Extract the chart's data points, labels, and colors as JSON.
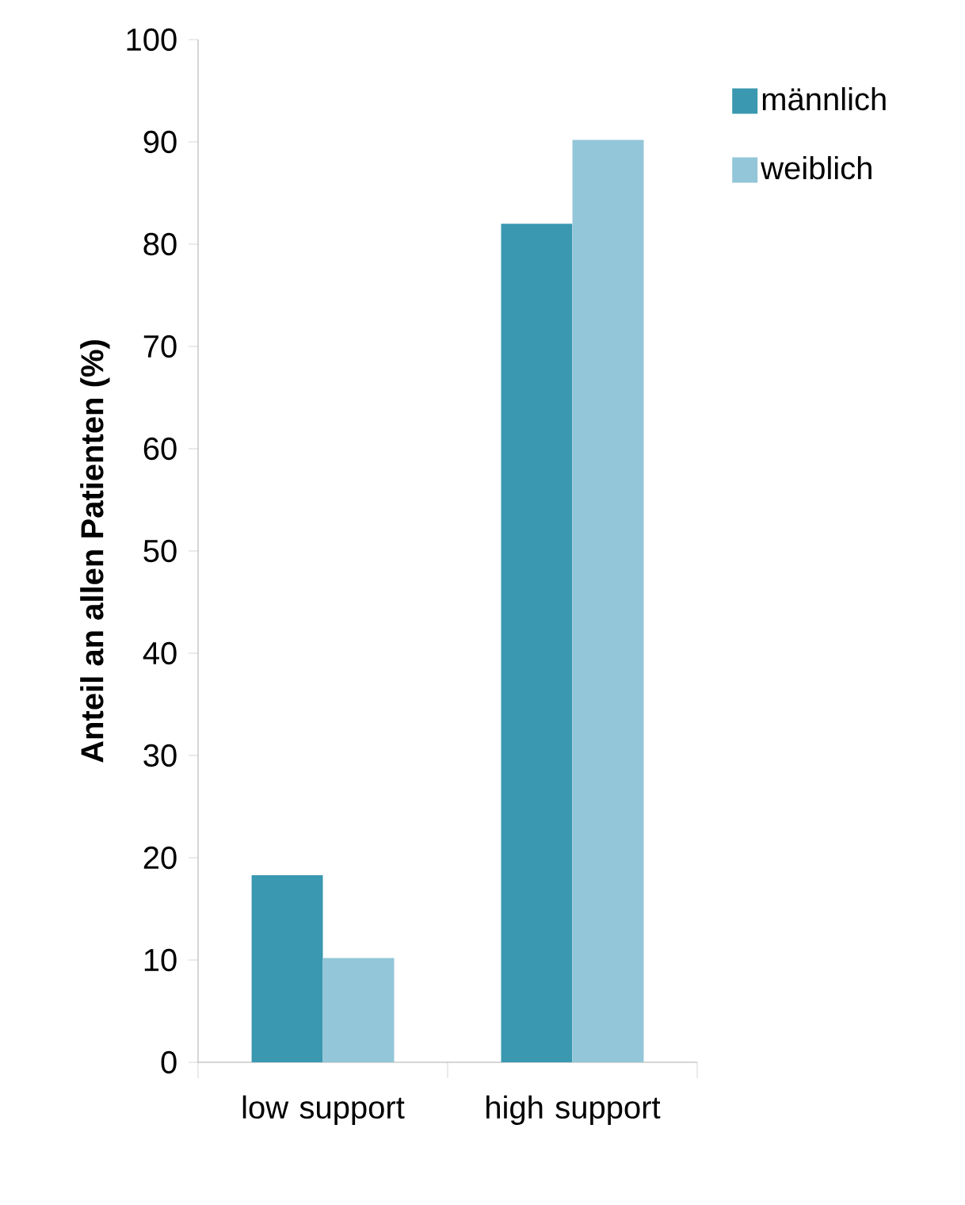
{
  "chart_data": {
    "type": "bar",
    "ylabel": "Anteil an allen Patienten (%)",
    "categories": [
      "low support",
      "high support"
    ],
    "series": [
      {
        "name": "männlich",
        "color": "#3a98b0",
        "values": [
          18.3,
          82.0
        ]
      },
      {
        "name": "weiblich",
        "color": "#93c6d8",
        "values": [
          10.2,
          90.2
        ]
      }
    ],
    "ylim": [
      0,
      100
    ],
    "yticks": [
      0,
      10,
      20,
      30,
      40,
      50,
      60,
      70,
      80,
      90,
      100
    ],
    "grid": false,
    "legend": "right"
  }
}
